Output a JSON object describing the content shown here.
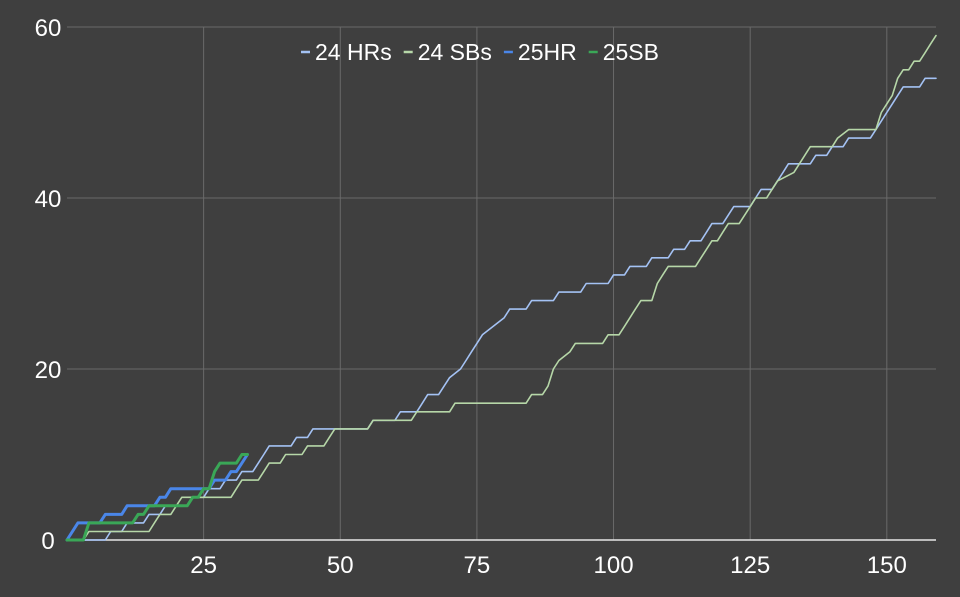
{
  "chart_data": {
    "type": "line",
    "title": "",
    "xlabel": "",
    "ylabel": "",
    "xlim": [
      0,
      159
    ],
    "ylim": [
      0,
      60
    ],
    "x_ticks": [
      25,
      50,
      75,
      100,
      125,
      150
    ],
    "y_ticks": [
      0,
      20,
      40,
      60
    ],
    "grid": true,
    "legend_position": "top",
    "series": [
      {
        "name": "24 HRs",
        "color": "#a4c2f4",
        "points": [
          [
            0,
            0
          ],
          [
            7,
            0
          ],
          [
            8,
            1
          ],
          [
            10,
            1
          ],
          [
            11,
            2
          ],
          [
            14,
            2
          ],
          [
            15,
            3
          ],
          [
            17,
            3
          ],
          [
            18,
            4
          ],
          [
            22,
            4
          ],
          [
            23,
            5
          ],
          [
            25,
            5
          ],
          [
            26,
            6
          ],
          [
            28,
            6
          ],
          [
            29,
            7
          ],
          [
            31,
            7
          ],
          [
            32,
            8
          ],
          [
            34,
            8
          ],
          [
            35,
            9
          ],
          [
            36,
            10
          ],
          [
            37,
            11
          ],
          [
            41,
            11
          ],
          [
            42,
            12
          ],
          [
            44,
            12
          ],
          [
            45,
            13
          ],
          [
            55,
            13
          ],
          [
            56,
            14
          ],
          [
            60,
            14
          ],
          [
            61,
            15
          ],
          [
            64,
            15
          ],
          [
            65,
            16
          ],
          [
            66,
            17
          ],
          [
            68,
            17
          ],
          [
            69,
            18
          ],
          [
            70,
            19
          ],
          [
            72,
            20
          ],
          [
            73,
            21
          ],
          [
            74,
            22
          ],
          [
            75,
            23
          ],
          [
            76,
            24
          ],
          [
            78,
            25
          ],
          [
            80,
            26
          ],
          [
            81,
            27
          ],
          [
            84,
            27
          ],
          [
            85,
            28
          ],
          [
            89,
            28
          ],
          [
            90,
            29
          ],
          [
            94,
            29
          ],
          [
            95,
            30
          ],
          [
            99,
            30
          ],
          [
            100,
            31
          ],
          [
            102,
            31
          ],
          [
            103,
            32
          ],
          [
            106,
            32
          ],
          [
            107,
            33
          ],
          [
            110,
            33
          ],
          [
            111,
            34
          ],
          [
            113,
            34
          ],
          [
            114,
            35
          ],
          [
            116,
            35
          ],
          [
            117,
            36
          ],
          [
            118,
            37
          ],
          [
            120,
            37
          ],
          [
            121,
            38
          ],
          [
            122,
            39
          ],
          [
            125,
            39
          ],
          [
            126,
            40
          ],
          [
            127,
            41
          ],
          [
            129,
            41
          ],
          [
            130,
            42
          ],
          [
            131,
            43
          ],
          [
            132,
            44
          ],
          [
            136,
            44
          ],
          [
            137,
            45
          ],
          [
            139,
            45
          ],
          [
            140,
            46
          ],
          [
            142,
            46
          ],
          [
            143,
            47
          ],
          [
            147,
            47
          ],
          [
            148,
            48
          ],
          [
            149,
            49
          ],
          [
            150,
            50
          ],
          [
            151,
            51
          ],
          [
            152,
            52
          ],
          [
            153,
            53
          ],
          [
            156,
            53
          ],
          [
            157,
            54
          ],
          [
            159,
            54
          ]
        ]
      },
      {
        "name": "24 SBs",
        "color": "#b6d7a8",
        "points": [
          [
            0,
            0
          ],
          [
            3,
            0
          ],
          [
            4,
            1
          ],
          [
            15,
            1
          ],
          [
            16,
            2
          ],
          [
            17,
            3
          ],
          [
            19,
            3
          ],
          [
            20,
            4
          ],
          [
            21,
            5
          ],
          [
            30,
            5
          ],
          [
            31,
            6
          ],
          [
            32,
            7
          ],
          [
            35,
            7
          ],
          [
            36,
            8
          ],
          [
            37,
            9
          ],
          [
            39,
            9
          ],
          [
            40,
            10
          ],
          [
            43,
            10
          ],
          [
            44,
            11
          ],
          [
            47,
            11
          ],
          [
            48,
            12
          ],
          [
            49,
            13
          ],
          [
            55,
            13
          ],
          [
            56,
            14
          ],
          [
            63,
            14
          ],
          [
            64,
            15
          ],
          [
            70,
            15
          ],
          [
            71,
            16
          ],
          [
            84,
            16
          ],
          [
            85,
            17
          ],
          [
            87,
            17
          ],
          [
            88,
            18
          ],
          [
            89,
            20
          ],
          [
            90,
            21
          ],
          [
            92,
            22
          ],
          [
            93,
            23
          ],
          [
            98,
            23
          ],
          [
            99,
            24
          ],
          [
            101,
            24
          ],
          [
            102,
            25
          ],
          [
            104,
            27
          ],
          [
            105,
            28
          ],
          [
            107,
            28
          ],
          [
            108,
            30
          ],
          [
            109,
            31
          ],
          [
            110,
            32
          ],
          [
            115,
            32
          ],
          [
            116,
            33
          ],
          [
            117,
            34
          ],
          [
            118,
            35
          ],
          [
            119,
            35
          ],
          [
            120,
            36
          ],
          [
            121,
            37
          ],
          [
            123,
            37
          ],
          [
            124,
            38
          ],
          [
            125,
            39
          ],
          [
            126,
            40
          ],
          [
            128,
            40
          ],
          [
            129,
            41
          ],
          [
            130,
            42
          ],
          [
            133,
            43
          ],
          [
            134,
            44
          ],
          [
            135,
            45
          ],
          [
            136,
            46
          ],
          [
            140,
            46
          ],
          [
            141,
            47
          ],
          [
            143,
            48
          ],
          [
            148,
            48
          ],
          [
            149,
            50
          ],
          [
            150,
            51
          ],
          [
            151,
            52
          ],
          [
            152,
            54
          ],
          [
            153,
            55
          ],
          [
            154,
            55
          ],
          [
            155,
            56
          ],
          [
            156,
            56
          ],
          [
            157,
            57
          ],
          [
            158,
            58
          ],
          [
            159,
            59
          ]
        ]
      },
      {
        "name": "25HR",
        "color": "#4a86e8",
        "points": [
          [
            0,
            0
          ],
          [
            2,
            2
          ],
          [
            6,
            2
          ],
          [
            7,
            3
          ],
          [
            10,
            3
          ],
          [
            11,
            4
          ],
          [
            16,
            4
          ],
          [
            17,
            5
          ],
          [
            18,
            5
          ],
          [
            19,
            6
          ],
          [
            26,
            6
          ],
          [
            27,
            7
          ],
          [
            28,
            7
          ],
          [
            29,
            7
          ],
          [
            30,
            8
          ],
          [
            31,
            8
          ],
          [
            32,
            9
          ],
          [
            33,
            10
          ]
        ]
      },
      {
        "name": "25SB",
        "color": "#3aa757",
        "points": [
          [
            0,
            0
          ],
          [
            3,
            0
          ],
          [
            4,
            2
          ],
          [
            12,
            2
          ],
          [
            13,
            3
          ],
          [
            14,
            3
          ],
          [
            15,
            4
          ],
          [
            22,
            4
          ],
          [
            23,
            5
          ],
          [
            24,
            5
          ],
          [
            25,
            6
          ],
          [
            26,
            6
          ],
          [
            27,
            8
          ],
          [
            28,
            9
          ],
          [
            31,
            9
          ],
          [
            32,
            10
          ],
          [
            33,
            10
          ]
        ]
      }
    ]
  }
}
